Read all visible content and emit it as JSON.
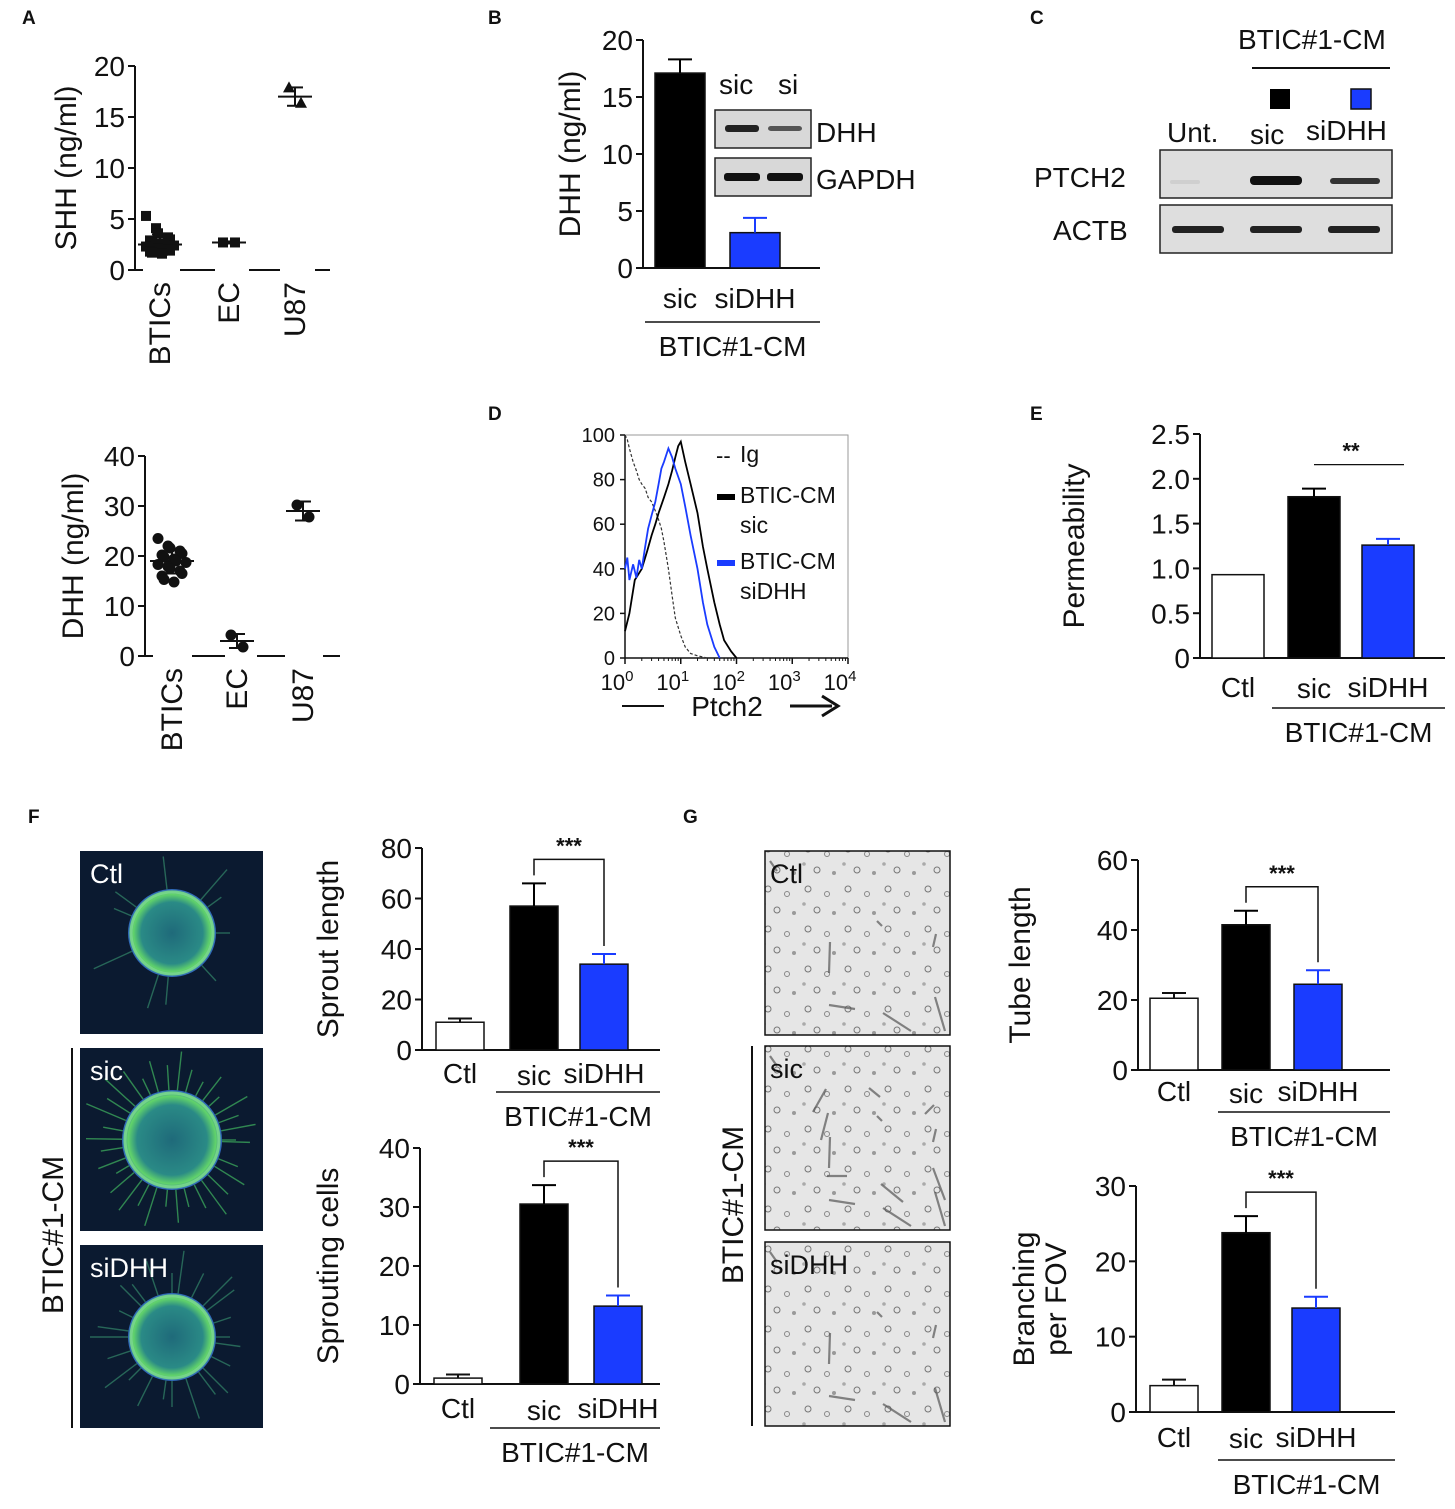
{
  "panels": {
    "A": {
      "letter": "A",
      "top": {
        "type": "scatter",
        "ylabel": "SHH (ng/ml)",
        "yticks": [
          "0",
          "5",
          "10",
          "15",
          "20"
        ],
        "ylim": [
          0,
          20
        ],
        "categories": [
          "BTICs",
          "EC",
          "U87"
        ],
        "groups": [
          {
            "name": "BTICs",
            "mean": 2.5,
            "sd": 1.0,
            "points": [
              5.3,
              4.1,
              3.6,
              3.2,
              3.0,
              2.9,
              2.7,
              2.6,
              2.5,
              2.4,
              2.3,
              2.2,
              2.1,
              2.0,
              1.9,
              1.8,
              1.7,
              1.6
            ]
          },
          {
            "name": "EC",
            "mean": 2.7,
            "sd": 0.1,
            "points": [
              2.7,
              2.7
            ]
          },
          {
            "name": "U87",
            "mean": 17.0,
            "sd": 0.9,
            "points": [
              17.9,
              16.4
            ]
          }
        ]
      },
      "bottom": {
        "type": "scatter",
        "ylabel": "DHH (ng/ml)",
        "yticks": [
          "0",
          "10",
          "20",
          "30",
          "40"
        ],
        "ylim": [
          0,
          40
        ],
        "categories": [
          "BTICs",
          "EC",
          "U87"
        ],
        "groups": [
          {
            "name": "BTICs",
            "mean": 19.0,
            "sd": 2.5,
            "points": [
              23.5,
              22.0,
              21.6,
              21.0,
              20.5,
              20.2,
              19.8,
              19.4,
              19.0,
              18.7,
              18.3,
              17.9,
              17.5,
              17.0,
              16.5,
              16.0,
              15.3,
              14.8
            ]
          },
          {
            "name": "EC",
            "mean": 3.0,
            "sd": 1.4,
            "points": [
              4.2,
              1.8
            ]
          },
          {
            "name": "U87",
            "mean": 29.0,
            "sd": 1.9,
            "points": [
              30.2,
              27.8
            ]
          }
        ]
      }
    },
    "B": {
      "letter": "B",
      "type": "bar",
      "ylabel": "DHH (ng/ml)",
      "yticks": [
        "0",
        "5",
        "10",
        "15",
        "20"
      ],
      "ylim": [
        0,
        20
      ],
      "categories": [
        "sic",
        "siDHH"
      ],
      "values": [
        17.1,
        3.1
      ],
      "errors": [
        1.2,
        1.3
      ],
      "colors": [
        "#000000",
        "#1a3cff"
      ],
      "group_label": "BTIC#1-CM",
      "blot": {
        "lanes": [
          "sic",
          "si"
        ],
        "rows": [
          "DHH",
          "GAPDH"
        ]
      }
    },
    "C": {
      "letter": "C",
      "header": "BTIC#1-CM",
      "lanes": [
        "Unt.",
        "sic",
        "siDHH"
      ],
      "square_colors": [
        "#000000",
        "#1a3cff"
      ],
      "rows": [
        "PTCH2",
        "ACTB"
      ]
    },
    "D": {
      "letter": "D",
      "type": "line",
      "xlabel": "Ptch2",
      "xscale": "log",
      "xlim": [
        1,
        10000
      ],
      "xticks": [
        {
          "base": "10",
          "exp": "0"
        },
        {
          "base": "10",
          "exp": "1"
        },
        {
          "base": "10",
          "exp": "2"
        },
        {
          "base": "10",
          "exp": "3"
        },
        {
          "base": "10",
          "exp": "4"
        }
      ],
      "yticks": [
        "0",
        "20",
        "40",
        "60",
        "80",
        "100"
      ],
      "ylim": [
        0,
        100
      ],
      "legend": [
        {
          "line1": "Ig",
          "line2": "",
          "color": "#333333",
          "dash": "dashed"
        },
        {
          "line1": "BTIC-CM",
          "line2": "sic",
          "color": "#000000",
          "dash": "solid"
        },
        {
          "line1": "BTIC-CM",
          "line2": "siDHH",
          "color": "#1a3cff",
          "dash": "solid"
        }
      ],
      "series": [
        {
          "name": "Ig",
          "x": [
            1,
            1.1,
            1.2,
            1.4,
            1.6,
            1.8,
            2,
            2.3,
            2.6,
            3,
            3.5,
            4,
            4.5,
            5,
            6,
            7,
            8,
            10,
            12,
            15,
            20,
            30
          ],
          "y": [
            100,
            98,
            94,
            88,
            84,
            80,
            78,
            76,
            72,
            70,
            66,
            62,
            58,
            52,
            40,
            28,
            18,
            10,
            5,
            2,
            1,
            0
          ]
        },
        {
          "name": "BTIC-CM sic",
          "x": [
            1,
            1.2,
            1.5,
            2,
            2.5,
            3,
            3.5,
            4,
            5,
            6,
            7,
            8,
            9,
            10,
            12,
            15,
            20,
            25,
            30,
            40,
            50,
            60,
            80,
            100
          ],
          "y": [
            12,
            20,
            35,
            40,
            48,
            55,
            60,
            65,
            72,
            78,
            84,
            90,
            95,
            97,
            88,
            78,
            65,
            50,
            40,
            25,
            15,
            8,
            3,
            0
          ]
        },
        {
          "name": "BTIC-CM siDHH",
          "x": [
            1,
            1.1,
            1.2,
            1.4,
            1.6,
            1.8,
            2,
            2.3,
            2.6,
            3,
            3.5,
            4,
            4.5,
            5,
            6,
            7,
            8,
            10,
            12,
            15,
            20,
            25,
            30,
            40,
            50
          ],
          "y": [
            40,
            45,
            35,
            42,
            36,
            44,
            40,
            50,
            58,
            64,
            70,
            78,
            85,
            88,
            94,
            90,
            85,
            78,
            68,
            55,
            40,
            25,
            15,
            5,
            0
          ]
        }
      ]
    },
    "E": {
      "letter": "E",
      "type": "bar",
      "ylabel": "Permeability",
      "yticks": [
        "0",
        "0.5",
        "1.0",
        "1.5",
        "2.0",
        "2.5"
      ],
      "ylim": [
        0,
        2.5
      ],
      "categories": [
        "Ctl",
        "sic",
        "siDHH"
      ],
      "values": [
        0.93,
        1.8,
        1.26
      ],
      "errors": [
        0,
        0.09,
        0.07
      ],
      "colors": [
        "#ffffff",
        "#000000",
        "#1a3cff"
      ],
      "group_label": "BTIC#1-CM",
      "significance": "**"
    },
    "F": {
      "letter": "F",
      "images": [
        "Ctl",
        "sic",
        "siDHH"
      ],
      "side_label": "BTIC#1-CM",
      "charts": [
        {
          "type": "bar",
          "ylabel": "Sprout length",
          "yticks": [
            "0",
            "20",
            "40",
            "60",
            "80"
          ],
          "ylim": [
            0,
            80
          ],
          "categories": [
            "Ctl",
            "sic",
            "siDHH"
          ],
          "values": [
            11,
            57,
            34
          ],
          "errors": [
            1.5,
            9,
            4
          ],
          "colors": [
            "#ffffff",
            "#000000",
            "#1a3cff"
          ],
          "group_label": "BTIC#1-CM",
          "significance": "***"
        },
        {
          "type": "bar",
          "ylabel": "Sprouting cells",
          "yticks": [
            "0",
            "10",
            "20",
            "30",
            "40"
          ],
          "ylim": [
            0,
            40
          ],
          "categories": [
            "Ctl",
            "sic",
            "siDHH"
          ],
          "values": [
            1.0,
            30.5,
            13.2
          ],
          "errors": [
            0.6,
            3.2,
            1.8
          ],
          "colors": [
            "#ffffff",
            "#000000",
            "#1a3cff"
          ],
          "group_label": "BTIC#1-CM",
          "significance": "***"
        }
      ]
    },
    "G": {
      "letter": "G",
      "images": [
        "Ctl",
        "sic",
        "siDHH"
      ],
      "side_label": "BTIC#1-CM",
      "charts": [
        {
          "type": "bar",
          "ylabel": "Tube length",
          "yticks": [
            "0",
            "20",
            "40",
            "60"
          ],
          "ylim": [
            0,
            60
          ],
          "categories": [
            "Ctl",
            "sic",
            "siDHH"
          ],
          "values": [
            20.5,
            41.5,
            24.5
          ],
          "errors": [
            1.5,
            4,
            4
          ],
          "colors": [
            "#ffffff",
            "#000000",
            "#1a3cff"
          ],
          "group_label": "BTIC#1-CM",
          "significance": "***"
        },
        {
          "type": "bar",
          "ylabel_line1": "Branching",
          "ylabel_line2": "per FOV",
          "yticks": [
            "0",
            "10",
            "20",
            "30"
          ],
          "ylim": [
            0,
            30
          ],
          "categories": [
            "Ctl",
            "sic",
            "siDHH"
          ],
          "values": [
            3.5,
            23.8,
            13.8
          ],
          "errors": [
            0.8,
            2.2,
            1.5
          ],
          "colors": [
            "#ffffff",
            "#000000",
            "#1a3cff"
          ],
          "group_label": "BTIC#1-CM",
          "significance": "***"
        }
      ]
    }
  }
}
